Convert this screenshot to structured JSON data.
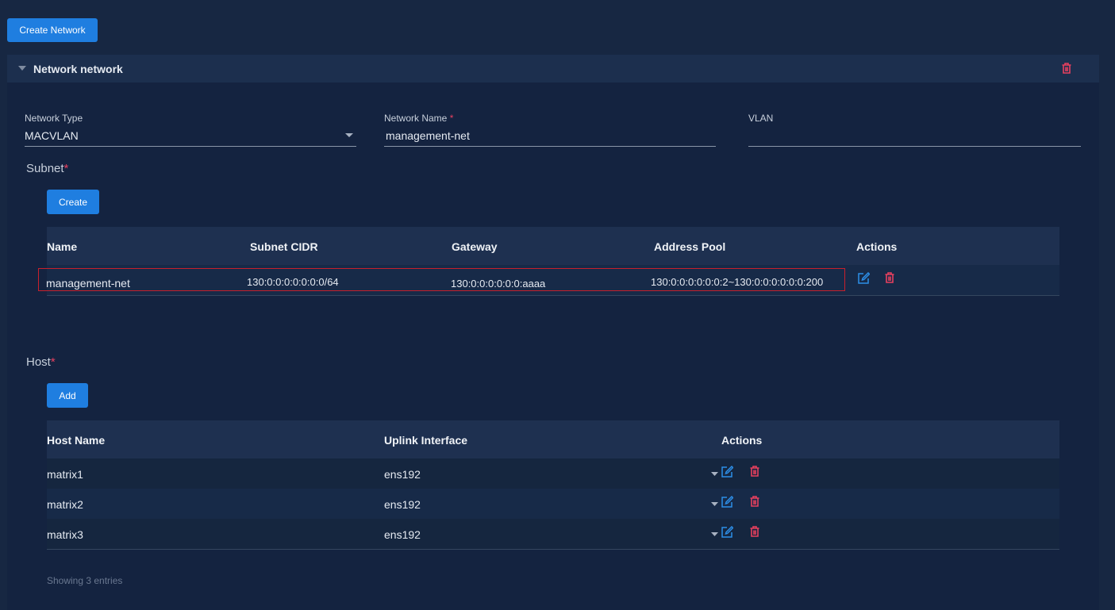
{
  "toolbar": {
    "create_button": "Create Network"
  },
  "panel": {
    "title": "Network network",
    "fields": [
      {
        "label": "Network Type",
        "value": "MACVLAN"
      },
      {
        "label": "Network Name",
        "required_mark": "*",
        "value": "management-net"
      },
      {
        "label": "VLAN",
        "value": ""
      }
    ],
    "subnet": {
      "title": "Subnet",
      "required_mark": "*",
      "create_button": "Create",
      "table": {
        "headers": [
          "Name",
          "Subnet CIDR",
          "Gateway",
          "Address Pool",
          "Actions"
        ],
        "rows": [
          [
            "management-net",
            "130:0:0:0:0:0:0:0/64",
            "130:0:0:0:0:0:0:aaaa",
            "130:0:0:0:0:0:0:2~130:0:0:0:0:0:0:200"
          ]
        ]
      }
    },
    "host": {
      "title": "Host",
      "required_mark": "*",
      "add_button": "Add",
      "table": {
        "headers": [
          "Host Name",
          "Uplink Interface",
          "Actions"
        ],
        "rows": [
          [
            "matrix1",
            "ens192"
          ],
          [
            "matrix2",
            "ens192"
          ],
          [
            "matrix3",
            "ens192"
          ]
        ]
      },
      "footer": "Showing 3 entries"
    }
  }
}
